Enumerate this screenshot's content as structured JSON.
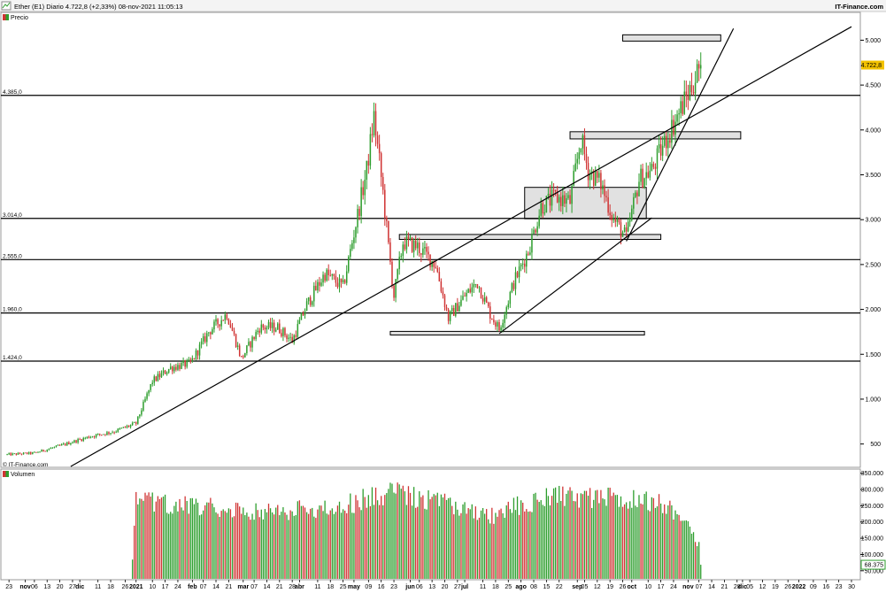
{
  "header": {
    "title": "Ether (E1) Diario 4.722,8 (+2,33%) 08-nov-2021 11:05:13",
    "brand": "IT-Finance.com"
  },
  "price_panel": {
    "legend": "Precio",
    "watermark": "© IT-Finance.com"
  },
  "volume_panel": {
    "legend": "Volumen"
  },
  "colors": {
    "up": "#2e9e2e",
    "down": "#d03434",
    "line": "#000000",
    "zone_fill": "#dcdcdc",
    "last_label_bg": "#f3c200"
  },
  "chart_data": [
    {
      "type": "candlestick",
      "title": "Precio",
      "x_range": [
        "2020-10-20",
        "2022-01-30"
      ],
      "ylim": [
        250,
        5300
      ],
      "y_ticks": [
        500,
        1000,
        1500,
        2000,
        2500,
        3000,
        3500,
        4000,
        4500,
        5000
      ],
      "y_tick_labels": [
        "500",
        "1.000",
        "1.500",
        "2.000",
        "2.500",
        "3.000",
        "3.500",
        "4.000",
        "4.500",
        "5.000"
      ],
      "last_price": 4722.8,
      "last_price_label": "4.722,8",
      "horizontal_levels": [
        {
          "value": 4385,
          "label": "4.385,0"
        },
        {
          "value": 3014,
          "label": "3.014,0"
        },
        {
          "value": 2555,
          "label": "2.555,0"
        },
        {
          "value": 1960,
          "label": "1.960,0"
        },
        {
          "value": 1424,
          "label": "1.424,0"
        }
      ],
      "zones": [
        {
          "from": "2021-09-26",
          "to": "2021-11-19",
          "low": 4990,
          "high": 5060
        },
        {
          "from": "2021-08-28",
          "to": "2021-11-30",
          "low": 3900,
          "high": 3980
        },
        {
          "from": "2021-08-03",
          "to": "2021-10-09",
          "low": 3010,
          "high": 3360
        },
        {
          "from": "2021-05-26",
          "to": "2021-10-17",
          "low": 2780,
          "high": 2835
        },
        {
          "from": "2021-05-21",
          "to": "2021-10-08",
          "low": 1715,
          "high": 1755
        }
      ],
      "trendlines": [
        {
          "x1": "2020-11-26",
          "y1": 250,
          "x2": "2022-01-30",
          "y2": 5150
        },
        {
          "x1": "2021-07-20",
          "y1": 1730,
          "x2": "2021-10-12",
          "y2": 3020
        },
        {
          "x1": "2021-09-28",
          "y1": 2760,
          "x2": "2021-11-26",
          "y2": 5130
        }
      ],
      "price_path": [
        [
          "2020-10-20",
          380
        ],
        [
          "2020-11-06",
          400
        ],
        [
          "2020-11-20",
          480
        ],
        [
          "2020-12-06",
          580
        ],
        [
          "2020-12-20",
          640
        ],
        [
          "2021-01-01",
          730
        ],
        [
          "2021-01-10",
          1200
        ],
        [
          "2021-01-20",
          1350
        ],
        [
          "2021-01-31",
          1400
        ],
        [
          "2021-02-10",
          1750
        ],
        [
          "2021-02-20",
          1950
        ],
        [
          "2021-02-28",
          1450
        ],
        [
          "2021-03-10",
          1800
        ],
        [
          "2021-03-20",
          1800
        ],
        [
          "2021-03-28",
          1650
        ],
        [
          "2021-04-05",
          2050
        ],
        [
          "2021-04-15",
          2400
        ],
        [
          "2021-04-25",
          2250
        ],
        [
          "2021-05-02",
          2950
        ],
        [
          "2021-05-08",
          3550
        ],
        [
          "2021-05-12",
          4150
        ],
        [
          "2021-05-17",
          3300
        ],
        [
          "2021-05-20",
          2700
        ],
        [
          "2021-05-23",
          2150
        ],
        [
          "2021-05-28",
          2750
        ],
        [
          "2021-06-05",
          2700
        ],
        [
          "2021-06-15",
          2500
        ],
        [
          "2021-06-22",
          1900
        ],
        [
          "2021-07-01",
          2150
        ],
        [
          "2021-07-08",
          2300
        ],
        [
          "2021-07-15",
          1950
        ],
        [
          "2021-07-20",
          1780
        ],
        [
          "2021-07-28",
          2300
        ],
        [
          "2021-08-05",
          2650
        ],
        [
          "2021-08-12",
          3150
        ],
        [
          "2021-08-20",
          3250
        ],
        [
          "2021-08-28",
          3200
        ],
        [
          "2021-09-03",
          3900
        ],
        [
          "2021-09-07",
          3550
        ],
        [
          "2021-09-14",
          3400
        ],
        [
          "2021-09-21",
          3000
        ],
        [
          "2021-09-28",
          2800
        ],
        [
          "2021-10-05",
          3450
        ],
        [
          "2021-10-12",
          3550
        ],
        [
          "2021-10-20",
          3900
        ],
        [
          "2021-10-26",
          4150
        ],
        [
          "2021-11-01",
          4400
        ],
        [
          "2021-11-08",
          4722.8
        ]
      ],
      "x_ticks": [
        {
          "date": "2020-10-23",
          "label": "23"
        },
        {
          "date": "2020-11-01",
          "label": "nov"
        },
        {
          "date": "2020-11-06",
          "label": "06"
        },
        {
          "date": "2020-11-13",
          "label": "13"
        },
        {
          "date": "2020-11-20",
          "label": "20"
        },
        {
          "date": "2020-11-27",
          "label": "27"
        },
        {
          "date": "2020-12-01",
          "label": "dic"
        },
        {
          "date": "2020-12-11",
          "label": "11"
        },
        {
          "date": "2020-12-18",
          "label": "18"
        },
        {
          "date": "2020-12-26",
          "label": "26"
        },
        {
          "date": "2021-01-01",
          "label": "2021"
        },
        {
          "date": "2021-01-10",
          "label": "10"
        },
        {
          "date": "2021-01-17",
          "label": "17"
        },
        {
          "date": "2021-01-24",
          "label": "24"
        },
        {
          "date": "2021-02-01",
          "label": "feb"
        },
        {
          "date": "2021-02-07",
          "label": "07"
        },
        {
          "date": "2021-02-14",
          "label": "14"
        },
        {
          "date": "2021-02-21",
          "label": "21"
        },
        {
          "date": "2021-03-01",
          "label": "mar"
        },
        {
          "date": "2021-03-07",
          "label": "07"
        },
        {
          "date": "2021-03-14",
          "label": "14"
        },
        {
          "date": "2021-03-21",
          "label": "21"
        },
        {
          "date": "2021-03-28",
          "label": "28"
        },
        {
          "date": "2021-04-01",
          "label": "abr"
        },
        {
          "date": "2021-04-11",
          "label": "11"
        },
        {
          "date": "2021-04-18",
          "label": "18"
        },
        {
          "date": "2021-04-25",
          "label": "25"
        },
        {
          "date": "2021-05-01",
          "label": "may"
        },
        {
          "date": "2021-05-09",
          "label": "09"
        },
        {
          "date": "2021-05-16",
          "label": "16"
        },
        {
          "date": "2021-05-23",
          "label": "23"
        },
        {
          "date": "2021-06-01",
          "label": "jun"
        },
        {
          "date": "2021-06-06",
          "label": "06"
        },
        {
          "date": "2021-06-13",
          "label": "13"
        },
        {
          "date": "2021-06-20",
          "label": "20"
        },
        {
          "date": "2021-06-27",
          "label": "27"
        },
        {
          "date": "2021-07-01",
          "label": "jul"
        },
        {
          "date": "2021-07-11",
          "label": "11"
        },
        {
          "date": "2021-07-18",
          "label": "18"
        },
        {
          "date": "2021-07-25",
          "label": "25"
        },
        {
          "date": "2021-08-01",
          "label": "ago"
        },
        {
          "date": "2021-08-08",
          "label": "08"
        },
        {
          "date": "2021-08-15",
          "label": "15"
        },
        {
          "date": "2021-08-22",
          "label": "22"
        },
        {
          "date": "2021-09-01",
          "label": "sep"
        },
        {
          "date": "2021-09-05",
          "label": "05"
        },
        {
          "date": "2021-09-12",
          "label": "12"
        },
        {
          "date": "2021-09-19",
          "label": "19"
        },
        {
          "date": "2021-09-26",
          "label": "26"
        },
        {
          "date": "2021-10-01",
          "label": "oct"
        },
        {
          "date": "2021-10-10",
          "label": "10"
        },
        {
          "date": "2021-10-17",
          "label": "17"
        },
        {
          "date": "2021-10-24",
          "label": "24"
        },
        {
          "date": "2021-11-01",
          "label": "nov"
        },
        {
          "date": "2021-11-07",
          "label": "07"
        },
        {
          "date": "2021-11-14",
          "label": "14"
        },
        {
          "date": "2021-11-21",
          "label": "21"
        },
        {
          "date": "2021-11-28",
          "label": "28"
        },
        {
          "date": "2021-12-01",
          "label": "dic"
        },
        {
          "date": "2021-12-05",
          "label": "05"
        },
        {
          "date": "2021-12-12",
          "label": "12"
        },
        {
          "date": "2021-12-19",
          "label": "19"
        },
        {
          "date": "2021-12-26",
          "label": "26"
        },
        {
          "date": "2022-01-01",
          "label": "2022"
        },
        {
          "date": "2022-01-09",
          "label": "09"
        },
        {
          "date": "2022-01-16",
          "label": "16"
        },
        {
          "date": "2022-01-23",
          "label": "23"
        },
        {
          "date": "2022-01-30",
          "label": "30"
        }
      ]
    },
    {
      "type": "bar",
      "title": "Volumen",
      "ylim": [
        25000,
        360000
      ],
      "y_ticks": [
        50000,
        100000,
        150000,
        200000,
        250000,
        300000,
        350000
      ],
      "y_tick_labels": [
        "50.000",
        "100.000",
        "150.000",
        "200.000",
        "250.000",
        "300.000",
        "350.000"
      ],
      "last_value": 68375,
      "last_value_label": "68.375",
      "volume_path": [
        [
          "2020-10-20",
          0
        ],
        [
          "2020-12-29",
          0
        ],
        [
          "2021-01-01",
          270000
        ],
        [
          "2021-02-15",
          250000
        ],
        [
          "2021-03-15",
          240000
        ],
        [
          "2021-04-15",
          245000
        ],
        [
          "2021-05-10",
          280000
        ],
        [
          "2021-05-22",
          305000
        ],
        [
          "2021-06-15",
          270000
        ],
        [
          "2021-07-15",
          220000
        ],
        [
          "2021-08-01",
          260000
        ],
        [
          "2021-08-20",
          285000
        ],
        [
          "2021-09-10",
          280000
        ],
        [
          "2021-09-25",
          280000
        ],
        [
          "2021-10-15",
          270000
        ],
        [
          "2021-11-01",
          215000
        ],
        [
          "2021-11-07",
          130000
        ],
        [
          "2021-11-08",
          68375
        ]
      ]
    }
  ]
}
